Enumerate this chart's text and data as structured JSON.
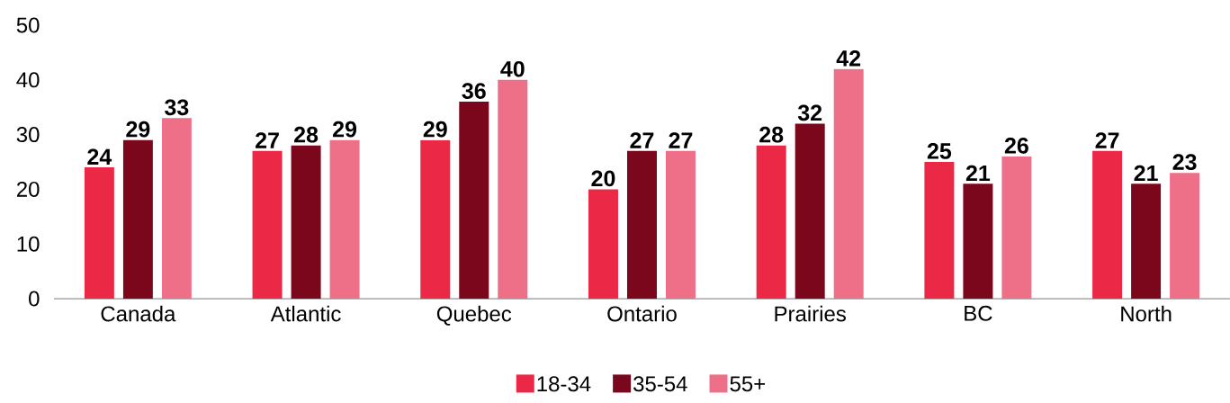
{
  "chart_data": {
    "type": "bar",
    "categories": [
      "Canada",
      "Atlantic",
      "Quebec",
      "Ontario",
      "Prairies",
      "BC",
      "North"
    ],
    "series": [
      {
        "name": "18-34",
        "color": "#ec2847",
        "values": [
          24,
          27,
          29,
          20,
          28,
          25,
          27
        ]
      },
      {
        "name": "35-54",
        "color": "#7b071d",
        "values": [
          29,
          28,
          36,
          27,
          32,
          21,
          21
        ]
      },
      {
        "name": "55+",
        "color": "#ed6f88",
        "values": [
          33,
          29,
          40,
          27,
          42,
          26,
          23
        ]
      }
    ],
    "ylim": [
      0,
      50
    ],
    "yticks": [
      0,
      10,
      20,
      30,
      40,
      50
    ],
    "data_labels": true,
    "legend": "bottom"
  }
}
